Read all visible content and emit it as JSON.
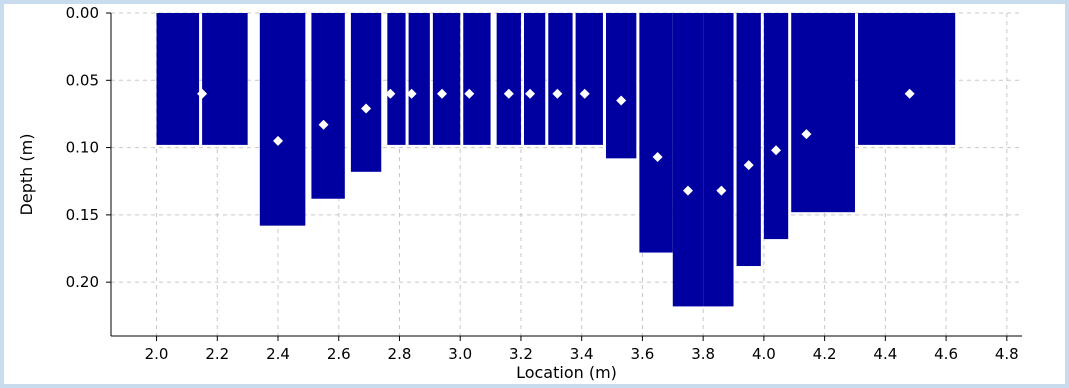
{
  "chart_data": {
    "type": "bar",
    "xlabel": "Location (m)",
    "ylabel": "Depth (m)",
    "xlim": [
      1.85,
      4.85
    ],
    "ylim": [
      0.0,
      0.24
    ],
    "y_inverted": true,
    "grid": true,
    "xticks": [
      "2.0",
      "2.2",
      "2.4",
      "2.6",
      "2.8",
      "3.0",
      "3.2",
      "3.4",
      "3.6",
      "3.8",
      "4.0",
      "4.2",
      "4.4",
      "4.6",
      "4.8"
    ],
    "xtick_values": [
      2.0,
      2.2,
      2.4,
      2.6,
      2.8,
      3.0,
      3.2,
      3.4,
      3.6,
      3.8,
      4.0,
      4.2,
      4.4,
      4.6,
      4.8
    ],
    "yticks": [
      "0.00",
      "0.05",
      "0.10",
      "0.15",
      "0.20"
    ],
    "ytick_values": [
      0.0,
      0.05,
      0.1,
      0.15,
      0.2
    ],
    "bar_color": "#0000a0",
    "point_color": "#ffffff",
    "bars": [
      {
        "x0": 2.0,
        "x1": 2.14,
        "depth": 0.098
      },
      {
        "x0": 2.15,
        "x1": 2.3,
        "depth": 0.098
      },
      {
        "x0": 2.34,
        "x1": 2.49,
        "depth": 0.158
      },
      {
        "x0": 2.51,
        "x1": 2.62,
        "depth": 0.138
      },
      {
        "x0": 2.64,
        "x1": 2.74,
        "depth": 0.118
      },
      {
        "x0": 2.76,
        "x1": 2.82,
        "depth": 0.098
      },
      {
        "x0": 2.83,
        "x1": 2.9,
        "depth": 0.098
      },
      {
        "x0": 2.91,
        "x1": 3.0,
        "depth": 0.098
      },
      {
        "x0": 3.01,
        "x1": 3.1,
        "depth": 0.098
      },
      {
        "x0": 3.12,
        "x1": 3.2,
        "depth": 0.098
      },
      {
        "x0": 3.21,
        "x1": 3.28,
        "depth": 0.098
      },
      {
        "x0": 3.29,
        "x1": 3.37,
        "depth": 0.098
      },
      {
        "x0": 3.38,
        "x1": 3.47,
        "depth": 0.098
      },
      {
        "x0": 3.48,
        "x1": 3.58,
        "depth": 0.108
      },
      {
        "x0": 3.59,
        "x1": 3.7,
        "depth": 0.178
      },
      {
        "x0": 3.7,
        "x1": 3.8,
        "depth": 0.218
      },
      {
        "x0": 3.8,
        "x1": 3.9,
        "depth": 0.218
      },
      {
        "x0": 3.91,
        "x1": 3.99,
        "depth": 0.188
      },
      {
        "x0": 4.0,
        "x1": 4.08,
        "depth": 0.168
      },
      {
        "x0": 4.09,
        "x1": 4.3,
        "depth": 0.148
      },
      {
        "x0": 4.31,
        "x1": 4.63,
        "depth": 0.098
      }
    ],
    "points": [
      {
        "x": 2.15,
        "y": 0.06
      },
      {
        "x": 2.4,
        "y": 0.095
      },
      {
        "x": 2.55,
        "y": 0.083
      },
      {
        "x": 2.69,
        "y": 0.071
      },
      {
        "x": 2.77,
        "y": 0.06
      },
      {
        "x": 2.84,
        "y": 0.06
      },
      {
        "x": 2.94,
        "y": 0.06
      },
      {
        "x": 3.03,
        "y": 0.06
      },
      {
        "x": 3.16,
        "y": 0.06
      },
      {
        "x": 3.23,
        "y": 0.06
      },
      {
        "x": 3.32,
        "y": 0.06
      },
      {
        "x": 3.41,
        "y": 0.06
      },
      {
        "x": 3.53,
        "y": 0.065
      },
      {
        "x": 3.65,
        "y": 0.107
      },
      {
        "x": 3.75,
        "y": 0.132
      },
      {
        "x": 3.86,
        "y": 0.132
      },
      {
        "x": 3.95,
        "y": 0.113
      },
      {
        "x": 4.04,
        "y": 0.102
      },
      {
        "x": 4.14,
        "y": 0.09
      },
      {
        "x": 4.48,
        "y": 0.06
      }
    ]
  }
}
